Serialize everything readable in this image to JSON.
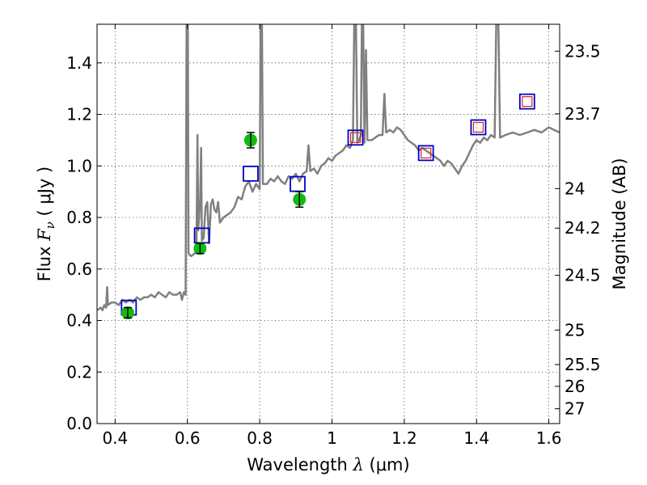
{
  "chart_data": {
    "type": "line",
    "title": "",
    "xlabel": {
      "prefix": "Wavelength  ",
      "symbol": "λ",
      "unit": " (μm)"
    },
    "ylabel": {
      "prefix": "Flux  ",
      "symbol": "F",
      "subscript": "ν",
      "unit": "  ( μJy )"
    },
    "y2label": "Magnitude (AB)",
    "xlim": [
      0.35,
      1.63
    ],
    "ylim": [
      0.0,
      1.55
    ],
    "x_ticks": [
      "0.4",
      "0.6",
      "0.8",
      "1",
      "1.2",
      "1.4",
      "1.6"
    ],
    "y_ticks": [
      "0.0",
      "0.2",
      "0.4",
      "0.6",
      "0.8",
      "1.0",
      "1.2",
      "1.4"
    ],
    "mag_ticks": [
      "23.5",
      "23.7",
      "24",
      "24.2",
      "24.5",
      "25",
      "25.5",
      "26",
      "27"
    ],
    "grid": true,
    "colors": {
      "model": "#808080",
      "observed": "#11bb11",
      "model_band": "#0000cc",
      "model_band_inner": "#dd2222"
    },
    "series": [
      {
        "kind": "line",
        "points": [
          [
            0.35,
            0.44
          ],
          [
            0.36,
            0.45
          ],
          [
            0.365,
            0.44
          ],
          [
            0.37,
            0.46
          ],
          [
            0.375,
            0.45
          ],
          [
            0.378,
            0.53
          ],
          [
            0.38,
            0.46
          ],
          [
            0.39,
            0.47
          ],
          [
            0.4,
            0.47
          ],
          [
            0.41,
            0.46
          ],
          [
            0.42,
            0.48
          ],
          [
            0.43,
            0.47
          ],
          [
            0.44,
            0.48
          ],
          [
            0.45,
            0.47
          ],
          [
            0.46,
            0.49
          ],
          [
            0.47,
            0.48
          ],
          [
            0.48,
            0.49
          ],
          [
            0.49,
            0.49
          ],
          [
            0.5,
            0.5
          ],
          [
            0.51,
            0.49
          ],
          [
            0.52,
            0.51
          ],
          [
            0.53,
            0.5
          ],
          [
            0.54,
            0.49
          ],
          [
            0.55,
            0.51
          ],
          [
            0.56,
            0.5
          ],
          [
            0.57,
            0.5
          ],
          [
            0.58,
            0.51
          ],
          [
            0.585,
            0.48
          ],
          [
            0.59,
            0.51
          ],
          [
            0.595,
            0.5
          ],
          [
            0.598,
            1.6
          ],
          [
            0.601,
            1.6
          ],
          [
            0.603,
            0.66
          ],
          [
            0.61,
            0.65
          ],
          [
            0.62,
            0.66
          ],
          [
            0.625,
            0.68
          ],
          [
            0.628,
            1.12
          ],
          [
            0.63,
            0.75
          ],
          [
            0.635,
            0.86
          ],
          [
            0.638,
            1.07
          ],
          [
            0.64,
            0.71
          ],
          [
            0.645,
            0.72
          ],
          [
            0.65,
            0.84
          ],
          [
            0.655,
            0.86
          ],
          [
            0.66,
            0.7
          ],
          [
            0.665,
            0.85
          ],
          [
            0.67,
            0.87
          ],
          [
            0.675,
            0.83
          ],
          [
            0.68,
            0.82
          ],
          [
            0.685,
            0.86
          ],
          [
            0.69,
            0.78
          ],
          [
            0.7,
            0.8
          ],
          [
            0.71,
            0.81
          ],
          [
            0.72,
            0.82
          ],
          [
            0.73,
            0.84
          ],
          [
            0.74,
            0.88
          ],
          [
            0.75,
            0.87
          ],
          [
            0.76,
            0.92
          ],
          [
            0.77,
            0.94
          ],
          [
            0.78,
            0.9
          ],
          [
            0.79,
            0.93
          ],
          [
            0.8,
            0.91
          ],
          [
            0.803,
            1.6
          ],
          [
            0.806,
            1.6
          ],
          [
            0.809,
            0.93
          ],
          [
            0.82,
            0.93
          ],
          [
            0.83,
            0.95
          ],
          [
            0.84,
            0.94
          ],
          [
            0.85,
            0.96
          ],
          [
            0.86,
            0.94
          ],
          [
            0.87,
            0.93
          ],
          [
            0.88,
            0.96
          ],
          [
            0.89,
            0.95
          ],
          [
            0.9,
            0.97
          ],
          [
            0.91,
            0.94
          ],
          [
            0.92,
            0.97
          ],
          [
            0.93,
            0.98
          ],
          [
            0.935,
            1.08
          ],
          [
            0.94,
            0.98
          ],
          [
            0.95,
            0.99
          ],
          [
            0.96,
            0.97
          ],
          [
            0.97,
            1.0
          ],
          [
            0.98,
            1.01
          ],
          [
            0.99,
            1.03
          ],
          [
            1.0,
            1.02
          ],
          [
            1.01,
            1.04
          ],
          [
            1.02,
            1.05
          ],
          [
            1.03,
            1.06
          ],
          [
            1.04,
            1.08
          ],
          [
            1.05,
            1.07
          ],
          [
            1.058,
            1.1
          ],
          [
            1.062,
            1.6
          ],
          [
            1.066,
            1.6
          ],
          [
            1.07,
            1.09
          ],
          [
            1.075,
            1.1
          ],
          [
            1.08,
            1.12
          ],
          [
            1.083,
            1.6
          ],
          [
            1.086,
            1.6
          ],
          [
            1.09,
            1.09
          ],
          [
            1.094,
            1.45
          ],
          [
            1.098,
            1.1
          ],
          [
            1.11,
            1.1
          ],
          [
            1.12,
            1.11
          ],
          [
            1.13,
            1.12
          ],
          [
            1.14,
            1.12
          ],
          [
            1.145,
            1.28
          ],
          [
            1.15,
            1.13
          ],
          [
            1.16,
            1.14
          ],
          [
            1.17,
            1.13
          ],
          [
            1.18,
            1.15
          ],
          [
            1.19,
            1.14
          ],
          [
            1.2,
            1.12
          ],
          [
            1.21,
            1.1
          ],
          [
            1.22,
            1.09
          ],
          [
            1.23,
            1.08
          ],
          [
            1.24,
            1.06
          ],
          [
            1.25,
            1.07
          ],
          [
            1.26,
            1.06
          ],
          [
            1.27,
            1.05
          ],
          [
            1.28,
            1.04
          ],
          [
            1.29,
            1.03
          ],
          [
            1.3,
            1.02
          ],
          [
            1.31,
            1.0
          ],
          [
            1.32,
            1.02
          ],
          [
            1.33,
            1.01
          ],
          [
            1.34,
            0.99
          ],
          [
            1.35,
            0.97
          ],
          [
            1.36,
            1.0
          ],
          [
            1.37,
            1.02
          ],
          [
            1.38,
            1.05
          ],
          [
            1.39,
            1.08
          ],
          [
            1.4,
            1.1
          ],
          [
            1.41,
            1.09
          ],
          [
            1.42,
            1.11
          ],
          [
            1.43,
            1.1
          ],
          [
            1.44,
            1.12
          ],
          [
            1.45,
            1.11
          ],
          [
            1.455,
            1.6
          ],
          [
            1.46,
            1.6
          ],
          [
            1.465,
            1.11
          ],
          [
            1.48,
            1.12
          ],
          [
            1.5,
            1.13
          ],
          [
            1.52,
            1.12
          ],
          [
            1.54,
            1.13
          ],
          [
            1.56,
            1.14
          ],
          [
            1.58,
            1.13
          ],
          [
            1.6,
            1.15
          ],
          [
            1.615,
            1.14
          ],
          [
            1.63,
            1.13
          ]
        ]
      },
      {
        "kind": "observed",
        "points": [
          {
            "x": 0.435,
            "y": 0.43,
            "err": 0.02
          },
          {
            "x": 0.635,
            "y": 0.68,
            "err": 0.02
          },
          {
            "x": 0.775,
            "y": 1.1,
            "err": 0.03
          },
          {
            "x": 0.91,
            "y": 0.87,
            "err": 0.03
          }
        ]
      },
      {
        "kind": "model_band",
        "points": [
          {
            "x": 0.438,
            "y": 0.45,
            "inner": false
          },
          {
            "x": 0.64,
            "y": 0.73,
            "inner": false
          },
          {
            "x": 0.775,
            "y": 0.97,
            "inner": false
          },
          {
            "x": 0.905,
            "y": 0.93,
            "inner": false
          },
          {
            "x": 1.065,
            "y": 1.11,
            "inner": true
          },
          {
            "x": 1.26,
            "y": 1.05,
            "inner": true
          },
          {
            "x": 1.405,
            "y": 1.15,
            "inner": true
          },
          {
            "x": 1.54,
            "y": 1.25,
            "inner": true
          }
        ]
      }
    ]
  }
}
